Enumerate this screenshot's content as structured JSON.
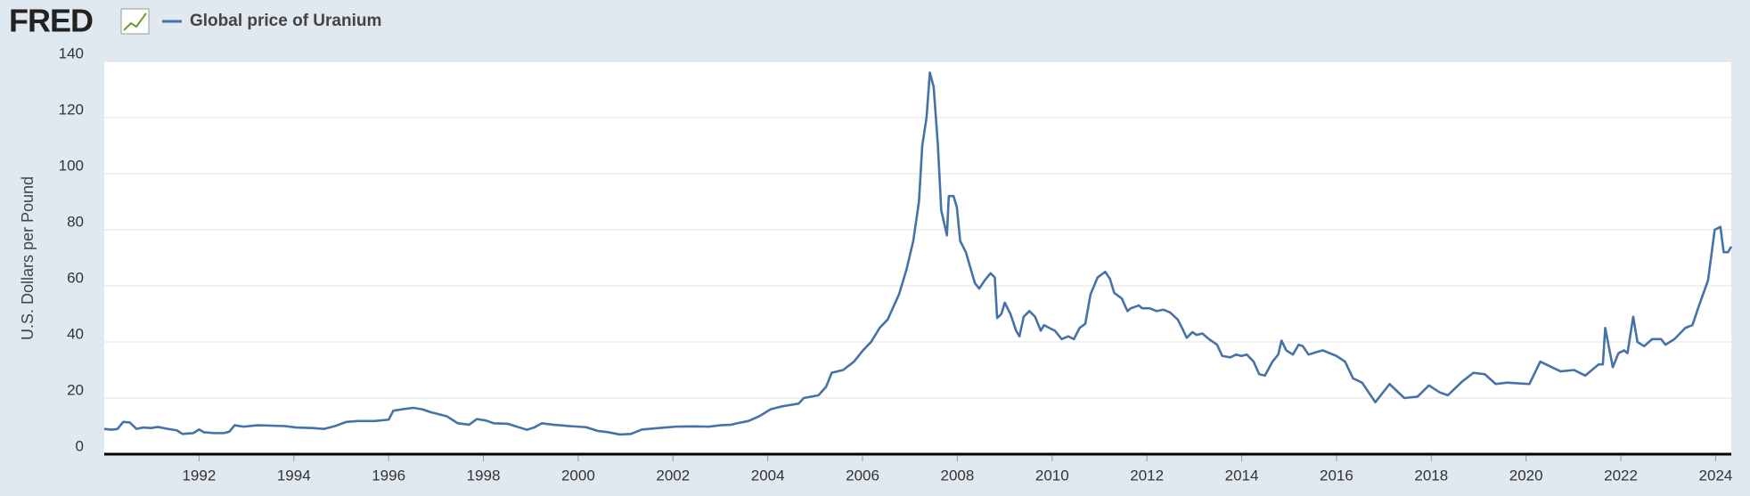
{
  "chart_data": {
    "type": "line",
    "logo": "FRED",
    "y_label": "U.S. Dollars per Pound",
    "x": [
      1990.0,
      1990.16,
      1990.28,
      1990.4,
      1990.54,
      1990.68,
      1990.82,
      1990.99,
      1991.13,
      1991.34,
      1991.53,
      1991.65,
      1991.88,
      1992.0,
      1992.1,
      1992.33,
      1992.52,
      1992.64,
      1992.75,
      1992.94,
      1993.23,
      1993.46,
      1993.81,
      1994.05,
      1994.4,
      1994.64,
      1994.87,
      1995.11,
      1995.35,
      1995.7,
      1996.0,
      1996.1,
      1996.29,
      1996.52,
      1996.71,
      1996.88,
      1997.23,
      1997.46,
      1997.7,
      1997.86,
      1998.05,
      1998.22,
      1998.52,
      1998.76,
      1998.92,
      1999.07,
      1999.23,
      1999.47,
      1999.82,
      2000.17,
      2000.41,
      2000.64,
      2000.88,
      2001.11,
      2001.35,
      2001.7,
      2002.06,
      2002.41,
      2002.76,
      2003.0,
      2003.23,
      2003.35,
      2003.59,
      2003.82,
      2004.06,
      2004.29,
      2004.65,
      2004.76,
      2005.07,
      2005.23,
      2005.35,
      2005.59,
      2005.82,
      2006.01,
      2006.18,
      2006.36,
      2006.53,
      2006.77,
      2006.93,
      2007.07,
      2007.19,
      2007.26,
      2007.35,
      2007.42,
      2007.5,
      2007.59,
      2007.66,
      2007.78,
      2007.82,
      2007.92,
      2007.99,
      2008.06,
      2008.18,
      2008.3,
      2008.37,
      2008.46,
      2008.58,
      2008.7,
      2008.79,
      2008.84,
      2008.93,
      2009.0,
      2009.12,
      2009.24,
      2009.31,
      2009.4,
      2009.52,
      2009.64,
      2009.76,
      2009.83,
      2009.94,
      2010.06,
      2010.2,
      2010.34,
      2010.46,
      2010.58,
      2010.7,
      2010.81,
      2010.96,
      2011.12,
      2011.22,
      2011.31,
      2011.47,
      2011.59,
      2011.66,
      2011.83,
      2011.9,
      2012.06,
      2012.2,
      2012.35,
      2012.49,
      2012.65,
      2012.77,
      2012.84,
      2012.96,
      2013.05,
      2013.17,
      2013.31,
      2013.48,
      2013.59,
      2013.76,
      2013.88,
      2013.99,
      2014.11,
      2014.25,
      2014.37,
      2014.49,
      2014.65,
      2014.77,
      2014.84,
      2014.94,
      2015.08,
      2015.2,
      2015.29,
      2015.41,
      2015.6,
      2015.71,
      2016.0,
      2016.18,
      2016.35,
      2016.54,
      2016.82,
      2017.12,
      2017.43,
      2017.71,
      2017.95,
      2018.18,
      2018.35,
      2018.66,
      2018.89,
      2019.13,
      2019.36,
      2019.6,
      2020.07,
      2020.3,
      2020.54,
      2020.73,
      2021.01,
      2021.25,
      2021.53,
      2021.62,
      2021.67,
      2021.83,
      2021.95,
      2022.07,
      2022.14,
      2022.26,
      2022.35,
      2022.49,
      2022.66,
      2022.85,
      2022.94,
      2023.13,
      2023.36,
      2023.51,
      2023.65,
      2023.84,
      2023.98,
      2024.1,
      2024.17,
      2024.26,
      2024.33
    ],
    "series": [
      {
        "name": "Global price of Uranium",
        "color": "#4572a7",
        "values": [
          9,
          8.7,
          9,
          11.5,
          11.3,
          9,
          9.5,
          9.3,
          9.7,
          9,
          8.5,
          7.2,
          7.5,
          8.8,
          7.8,
          7.5,
          7.5,
          8,
          10.3,
          9.8,
          10.3,
          10.2,
          10,
          9.5,
          9.3,
          9,
          10,
          11.5,
          11.8,
          11.8,
          12.3,
          15.5,
          16,
          16.5,
          16,
          15,
          13.5,
          11,
          10.5,
          12.5,
          12,
          11,
          10.8,
          9.5,
          8.7,
          9.5,
          11,
          10.5,
          10,
          9.6,
          8.3,
          7.8,
          7,
          7.2,
          8.8,
          9.3,
          9.8,
          9.9,
          9.8,
          10.3,
          10.5,
          11,
          11.8,
          13.5,
          16,
          17,
          18,
          20,
          21,
          24,
          29,
          30,
          33,
          37,
          40,
          45,
          48,
          57,
          66,
          76,
          90,
          110,
          120,
          136,
          131,
          110,
          87,
          78,
          92,
          92,
          88,
          76,
          72,
          65,
          61,
          59,
          62,
          64.5,
          63,
          48.5,
          50,
          54,
          50,
          44,
          42,
          49,
          51,
          49,
          44,
          46,
          45,
          44,
          41,
          42,
          41,
          45,
          46.5,
          57,
          63,
          65,
          62.5,
          57.5,
          55.5,
          51,
          52,
          53,
          52,
          52,
          51,
          51.5,
          50.5,
          48,
          44,
          41.5,
          43.5,
          42.5,
          43,
          41,
          39,
          35,
          34.5,
          35.5,
          35,
          35.5,
          33,
          28.5,
          28,
          33,
          35.5,
          40.5,
          37,
          35.5,
          39,
          38.5,
          35.5,
          36.5,
          37,
          35,
          33,
          27,
          25.5,
          18.5,
          25,
          20,
          20.5,
          24.5,
          22,
          21,
          26,
          29,
          28.5,
          25,
          25.5,
          25,
          33,
          31,
          29.5,
          30,
          28,
          32,
          32,
          45,
          31,
          36,
          37,
          36,
          49,
          40,
          38.5,
          41,
          41,
          39,
          41,
          45,
          46,
          53,
          62,
          80,
          81,
          72,
          72,
          74
        ]
      }
    ],
    "xlim": [
      1990,
      2024.33
    ],
    "xticks": [
      1992,
      1994,
      1996,
      1998,
      2000,
      2002,
      2004,
      2006,
      2008,
      2010,
      2012,
      2014,
      2016,
      2018,
      2020,
      2022,
      2024
    ],
    "ylim": [
      0,
      140
    ],
    "yticks": [
      0,
      20,
      40,
      60,
      80,
      100,
      120,
      140
    ],
    "grid": true
  }
}
